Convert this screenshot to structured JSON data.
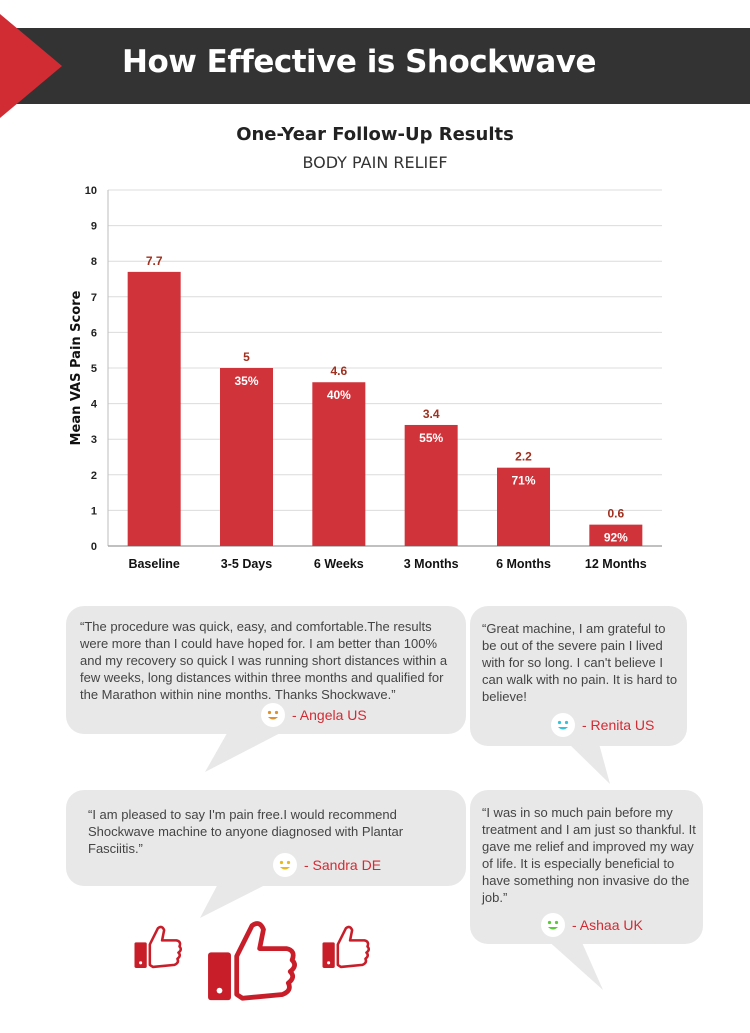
{
  "header": {
    "title": "How Effective is Shockwave"
  },
  "chart_data": {
    "type": "bar",
    "title": "One-Year Follow-Up Results",
    "subtitle": "BODY PAIN RELIEF",
    "ylabel": "Mean VAS Pain Score",
    "xlabel": "",
    "ylim": [
      0,
      10
    ],
    "yticks": [
      "0",
      "1",
      "2",
      "3",
      "4",
      "5",
      "6",
      "7",
      "8",
      "9",
      "10"
    ],
    "grid": true,
    "categories": [
      "Baseline",
      "3-5 Days",
      "6 Weeks",
      "3 Months",
      "6 Months",
      "12 Months"
    ],
    "values": [
      7.7,
      5,
      4.6,
      3.4,
      2.2,
      0.6
    ],
    "value_labels": [
      "7.7",
      "5",
      "4.6",
      "3.4",
      "2.2",
      "0.6"
    ],
    "percent_labels": [
      "",
      "35%",
      "40%",
      "55%",
      "71%",
      "92%"
    ],
    "bar_color": "#d0333a",
    "value_label_color": "#a0301f"
  },
  "testimonials": [
    {
      "id": "angela",
      "text": "“The procedure was quick, easy, and comfortable.The results were more than I could have hoped for. I am better than 100% and my recovery so quick I was running short distances within a few weeks, long distances within three months and qualified for the Marathon within nine months. Thanks Shockwave.”",
      "author": "- Angela  US",
      "smiley_color": "#e0912f"
    },
    {
      "id": "renita",
      "text": "“Great machine, I am grateful to be out of the severe pain I lived with for so long. I can't believe I can walk with no pain. It is hard to believe!",
      "author": "- Renita US",
      "smiley_color": "#35c3dc"
    },
    {
      "id": "sandra",
      "text": "“I am pleased to say I'm pain free.I would recommend Shockwave machine to anyone diagnosed with Plantar Fasciitis.”",
      "author": "- Sandra DE",
      "smiley_color": "#e8b923"
    },
    {
      "id": "ashaa",
      "text": "“I was in so much pain before my treatment and I am just so thankful. It gave me relief and improved my way of life. It is especially beneficial to have something non invasive do the job.”",
      "author": "- Ashaa UK",
      "smiley_color": "#5cc93a"
    }
  ],
  "colors": {
    "accent": "#d12c34",
    "header_bg": "#333333",
    "bubble_bg": "#e8e8e8"
  },
  "icons": {
    "thumbs": [
      "thumbs-up-icon",
      "thumbs-up-icon",
      "thumbs-up-icon"
    ],
    "smiley": "smiley-face-icon"
  }
}
